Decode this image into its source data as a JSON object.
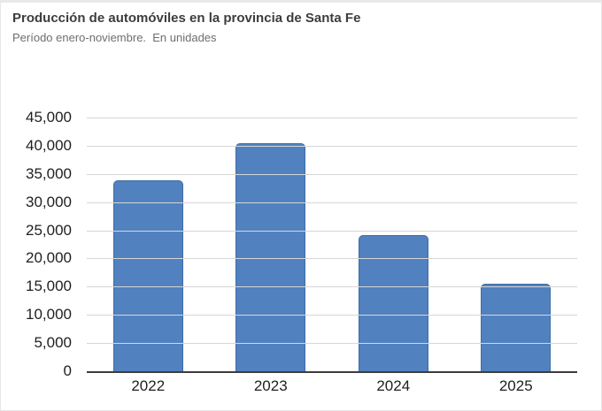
{
  "card": {
    "title": "Producción de automóviles en la provincia de Santa Fe",
    "subtitle": "Período enero-noviembre.  En unidades"
  },
  "chart_data": {
    "type": "bar",
    "title": "Producción de automóviles en la provincia de Santa Fe",
    "subtitle": "Período enero-noviembre.  En unidades",
    "categories": [
      "2022",
      "2023",
      "2024",
      "2025"
    ],
    "values": [
      33900,
      40400,
      24100,
      15600
    ],
    "xlabel": "",
    "ylabel": "",
    "ylim": [
      0,
      45000
    ],
    "yticks": [
      0,
      5000,
      10000,
      15000,
      20000,
      25000,
      30000,
      35000,
      40000,
      45000
    ],
    "ytick_labels": [
      "0",
      "5,000",
      "10,000",
      "15,000",
      "20,000",
      "25,000",
      "30,000",
      "35,000",
      "40,000",
      "45,000"
    ],
    "grid": "horizontal",
    "legend": "none",
    "colors": {
      "bar_fill": "#5182bf",
      "bar_border": "#3e6ca6",
      "gridline": "#d6d6d6",
      "axis_line": "#3c3c3c",
      "tick_label": "#1f1f1f",
      "title": "#3d3d3d",
      "subtitle": "#6e6e6e"
    }
  }
}
